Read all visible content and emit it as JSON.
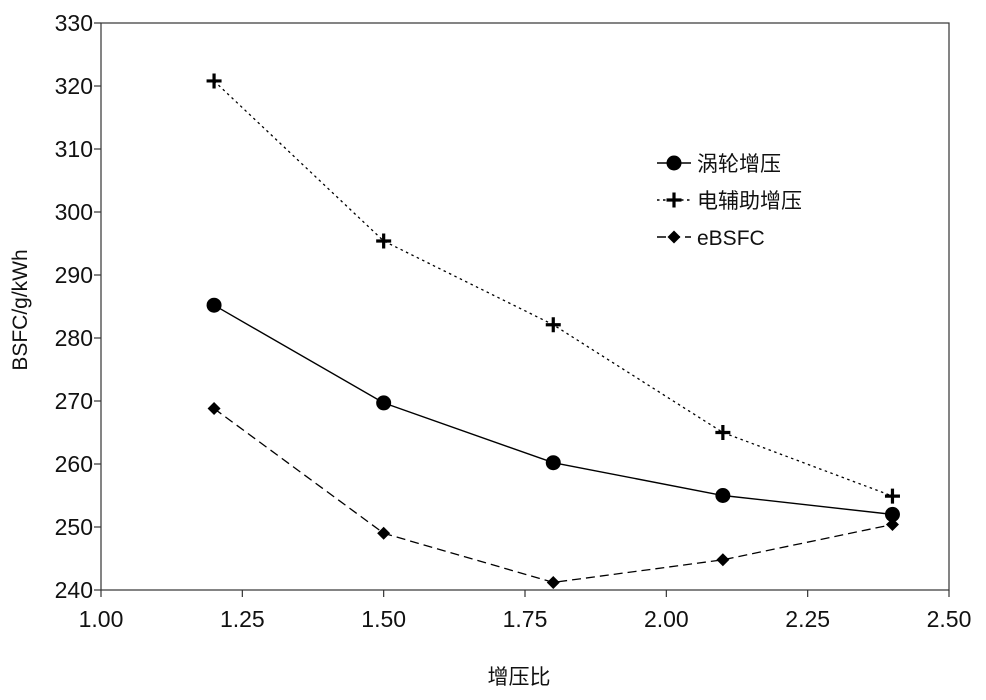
{
  "chart_data": {
    "type": "line",
    "title": "",
    "xlabel": "增压比",
    "ylabel": "BSFC/g/kWh",
    "xlim": [
      1.0,
      2.5
    ],
    "ylim": [
      240,
      330
    ],
    "x_ticks": [
      "1.00",
      "1.25",
      "1.50",
      "1.75",
      "2.00",
      "2.25",
      "2.50"
    ],
    "x_tick_values": [
      1.0,
      1.25,
      1.5,
      1.75,
      2.0,
      2.25,
      2.5
    ],
    "y_ticks": [
      "240",
      "250",
      "260",
      "270",
      "280",
      "290",
      "300",
      "310",
      "320",
      "330"
    ],
    "y_tick_values": [
      240,
      250,
      260,
      270,
      280,
      290,
      300,
      310,
      320,
      330
    ],
    "grid": false,
    "legend_position": "upper-right",
    "x": [
      1.2,
      1.5,
      1.8,
      2.1,
      2.4
    ],
    "series": [
      {
        "name": "涡轮增压",
        "values": [
          285.2,
          269.7,
          260.2,
          255.0,
          252.0
        ],
        "line_style": "solid",
        "marker": "circle",
        "color": "#000000"
      },
      {
        "name": "电辅助增压",
        "values": [
          320.8,
          295.4,
          282.1,
          265.0,
          254.9
        ],
        "line_style": "dotted",
        "marker": "plus",
        "color": "#000000"
      },
      {
        "name": "eBSFC",
        "values": [
          268.8,
          249.0,
          241.2,
          244.8,
          250.4
        ],
        "line_style": "dashed",
        "marker": "diamond",
        "color": "#000000"
      }
    ]
  }
}
